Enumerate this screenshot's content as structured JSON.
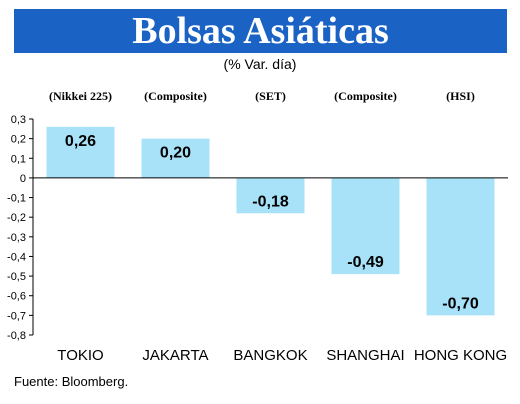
{
  "title": "Bolsas Asiáticas",
  "subtitle": "(% Var. día)",
  "source": "Fuente: Bloomberg.",
  "colors": {
    "title_band": "#1a62c4",
    "bar": "#a8e2f8"
  },
  "chart_data": {
    "type": "bar",
    "categories": [
      "TOKIO",
      "JAKARTA",
      "BANGKOK",
      "SHANGHAI",
      "HONG KONG"
    ],
    "index_labels": [
      "(Nikkei 225)",
      "(Composite)",
      "(SET)",
      "(Composite)",
      "(HSI)"
    ],
    "values": [
      0.26,
      0.2,
      -0.18,
      -0.49,
      -0.7
    ],
    "value_labels": [
      "0,26",
      "0,20",
      "-0,18",
      "-0,49",
      "-0,70"
    ],
    "ylim": [
      -0.8,
      0.3
    ],
    "yticks": [
      0.3,
      0.2,
      0.1,
      0,
      -0.1,
      -0.2,
      -0.3,
      -0.4,
      -0.5,
      -0.6,
      -0.7,
      -0.8
    ],
    "ytick_labels": [
      "0,3",
      "0,2",
      "0,1",
      "0",
      "-0,1",
      "-0,2",
      "-0,3",
      "-0,4",
      "-0,5",
      "-0,6",
      "-0,7",
      "-0,8"
    ],
    "grid": false
  }
}
